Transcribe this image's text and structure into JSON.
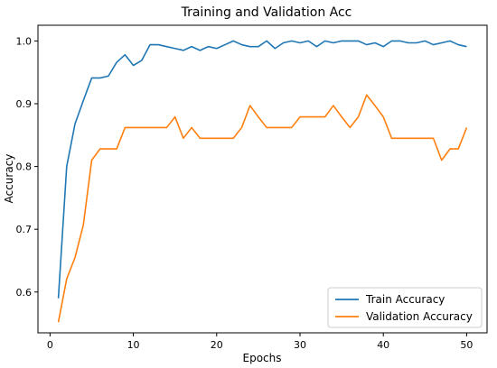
{
  "chart_data": {
    "type": "line",
    "title": "Training and Validation Acc",
    "xlabel": "Epochs",
    "ylabel": "Accuracy",
    "xlim": [
      -1.45,
      52.45
    ],
    "ylim": [
      0.535,
      1.025
    ],
    "xticks": [
      0,
      10,
      20,
      30,
      40,
      50
    ],
    "yticks": [
      0.6,
      0.7,
      0.8,
      0.9,
      1.0
    ],
    "xtick_labels": [
      "0",
      "10",
      "20",
      "30",
      "40",
      "50"
    ],
    "ytick_labels": [
      "0.6",
      "0.7",
      "0.8",
      "0.9",
      "1.0"
    ],
    "grid": false,
    "legend_position": "lower-right",
    "x": [
      1,
      2,
      3,
      4,
      5,
      6,
      7,
      8,
      9,
      10,
      11,
      12,
      13,
      14,
      15,
      16,
      17,
      18,
      19,
      20,
      21,
      22,
      23,
      24,
      25,
      26,
      27,
      28,
      29,
      30,
      31,
      32,
      33,
      34,
      35,
      36,
      37,
      38,
      39,
      40,
      41,
      42,
      43,
      44,
      45,
      46,
      47,
      48,
      49,
      50
    ],
    "series": [
      {
        "name": "Train Accuracy",
        "color": "#1f77b4",
        "values": [
          0.59,
          0.8,
          0.868,
          0.905,
          0.941,
          0.941,
          0.944,
          0.966,
          0.978,
          0.961,
          0.969,
          0.994,
          0.994,
          0.991,
          0.988,
          0.985,
          0.991,
          0.985,
          0.991,
          0.988,
          0.994,
          1.0,
          0.994,
          0.991,
          0.991,
          1.0,
          0.988,
          0.997,
          1.0,
          0.997,
          1.0,
          0.991,
          1.0,
          0.997,
          1.0,
          1.0,
          1.0,
          0.994,
          0.997,
          0.991,
          1.0,
          1.0,
          0.997,
          0.997,
          1.0,
          0.994,
          0.997,
          1.0,
          0.994,
          0.991
        ]
      },
      {
        "name": "Validation Accuracy",
        "color": "#ff7f0e",
        "values": [
          0.552,
          0.621,
          0.655,
          0.707,
          0.81,
          0.828,
          0.828,
          0.828,
          0.862,
          0.862,
          0.862,
          0.862,
          0.862,
          0.862,
          0.879,
          0.845,
          0.862,
          0.845,
          0.845,
          0.845,
          0.845,
          0.845,
          0.862,
          0.897,
          0.879,
          0.862,
          0.862,
          0.862,
          0.862,
          0.879,
          0.879,
          0.879,
          0.879,
          0.897,
          0.879,
          0.862,
          0.879,
          0.914,
          0.897,
          0.879,
          0.845,
          0.845,
          0.845,
          0.845,
          0.845,
          0.845,
          0.81,
          0.828,
          0.828,
          0.862
        ]
      }
    ]
  }
}
